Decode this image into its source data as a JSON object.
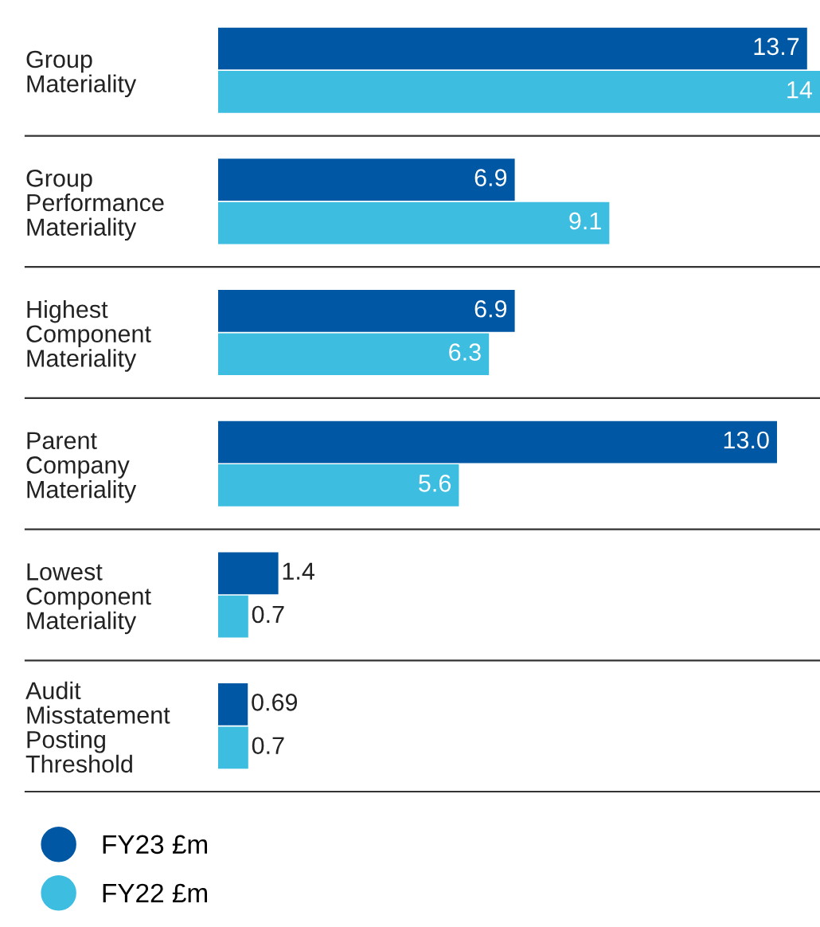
{
  "chart_data": {
    "type": "bar",
    "orientation": "horizontal",
    "categories": [
      "Group\nMateriality",
      "Group\nPerformance\nMateriality",
      "Highest\nComponent\nMateriality",
      "Parent\nCompany\nMateriality",
      "Lowest\nComponent\nMateriality",
      "Audit\nMisstatement\nPosting\nThreshold"
    ],
    "series": [
      {
        "name": "FY23 £m",
        "color": "#0058a5",
        "values": [
          13.7,
          6.9,
          6.9,
          13.0,
          1.4,
          0.69
        ],
        "value_labels": [
          "13.7",
          "6.9",
          "6.9",
          "13.0",
          "1.4",
          "0.69"
        ]
      },
      {
        "name": "FY22 £m",
        "color": "#3dbde0",
        "values": [
          14,
          9.1,
          6.3,
          5.6,
          0.7,
          0.7
        ],
        "value_labels": [
          "14",
          "9.1",
          "6.3",
          "5.6",
          "0.7",
          "0.7"
        ]
      }
    ],
    "legend": "bottom left",
    "grid": false
  }
}
